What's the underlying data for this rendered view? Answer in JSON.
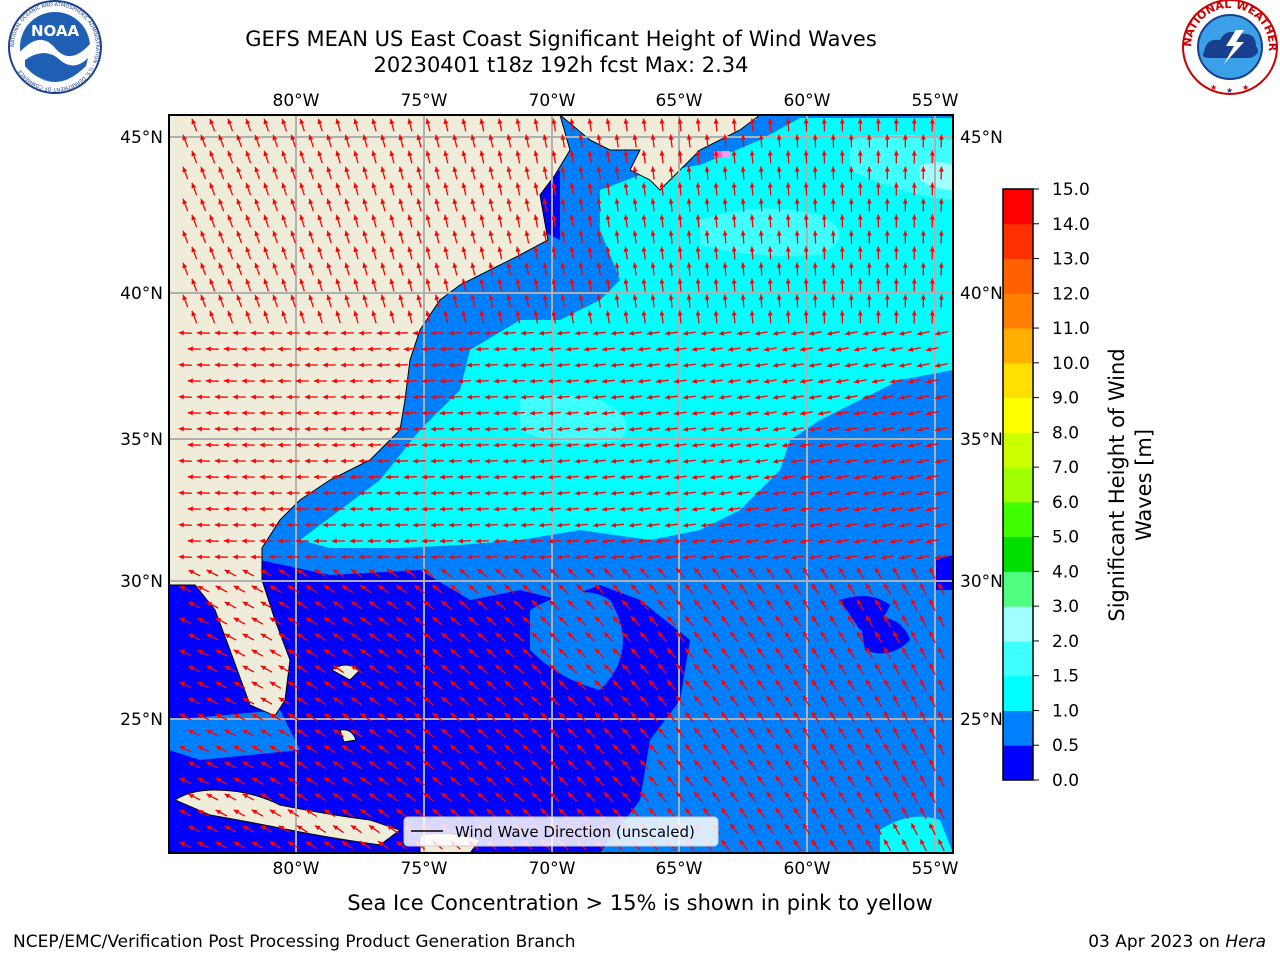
{
  "header": {
    "title_line1": "GEFS MEAN US East Coast Significant Height of Wind Waves",
    "title_line2": "20230401 t18z 192h fcst   Max: 2.34"
  },
  "logos": {
    "left": "NOAA",
    "left_ring_text": "NATIONAL OCEANIC AND ATMOSPHERIC ADMINISTRATION · U.S. DEPARTMENT OF COMMERCE",
    "right_ring_text": "NATIONAL WEATHER SERVICE"
  },
  "map": {
    "lon_labels": [
      "80°W",
      "75°W",
      "70°W",
      "65°W",
      "60°W",
      "55°W"
    ],
    "lat_labels": [
      "45°N",
      "40°N",
      "35°N",
      "30°N",
      "25°N"
    ],
    "lon_range": [
      -85,
      -54.3
    ],
    "lat_range": [
      20.5,
      46.5
    ],
    "colors": {
      "land": "#efecda",
      "grid": "#b0b0b0",
      "arrow": "#ff0000"
    },
    "legend_label": "Wind Wave Direction (unscaled)"
  },
  "colorbar": {
    "label_line1": "Significant Height of Wind",
    "label_line2": "Waves [m]",
    "ticks": [
      "0.0",
      "0.5",
      "1.0",
      "1.5",
      "2.0",
      "3.0",
      "4.0",
      "5.0",
      "6.0",
      "7.0",
      "8.0",
      "9.0",
      "10.0",
      "11.0",
      "12.0",
      "13.0",
      "14.0",
      "15.0"
    ],
    "colors": [
      "#0000ff",
      "#0080ff",
      "#00ffff",
      "#40ffff",
      "#a0ffff",
      "#50ff80",
      "#00e000",
      "#40ff00",
      "#a0ff00",
      "#ccff00",
      "#ffff00",
      "#ffe000",
      "#ffb000",
      "#ff8000",
      "#ff6000",
      "#ff3000",
      "#ff0000"
    ]
  },
  "notes": {
    "ice": "Sea Ice Concentration > 15% is shown in pink to yellow"
  },
  "footer": {
    "left": "NCEP/EMC/Verification Post Processing Product Generation Branch",
    "date": "03 Apr 2023 on ",
    "machine": "Hera"
  }
}
